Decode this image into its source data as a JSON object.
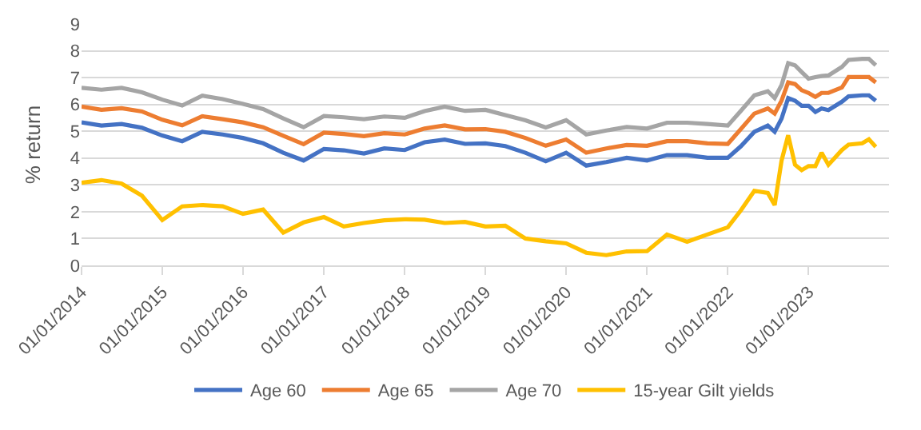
{
  "chart_data": {
    "type": "line",
    "ylabel": "% return",
    "x": [
      "2014-01",
      "2014-04",
      "2014-07",
      "2014-10",
      "2015-01",
      "2015-04",
      "2015-07",
      "2015-10",
      "2016-01",
      "2016-04",
      "2016-07",
      "2016-10",
      "2017-01",
      "2017-04",
      "2017-07",
      "2017-10",
      "2018-01",
      "2018-04",
      "2018-07",
      "2018-10",
      "2019-01",
      "2019-04",
      "2019-07",
      "2019-10",
      "2020-01",
      "2020-04",
      "2020-07",
      "2020-10",
      "2021-01",
      "2021-04",
      "2021-07",
      "2021-10",
      "2022-01",
      "2022-03",
      "2022-05",
      "2022-07",
      "2022-08",
      "2022-09",
      "2022-10",
      "2022-11",
      "2022-12",
      "2023-01",
      "2023-02",
      "2023-03",
      "2023-04",
      "2023-06",
      "2023-07",
      "2023-09",
      "2023-10",
      "2023-11"
    ],
    "series": [
      {
        "name": "Age 60",
        "color": "#4472c4",
        "values": [
          5.33,
          5.21,
          5.27,
          5.13,
          4.84,
          4.63,
          4.98,
          4.88,
          4.75,
          4.55,
          4.2,
          3.91,
          4.34,
          4.29,
          4.17,
          4.36,
          4.3,
          4.59,
          4.69,
          4.53,
          4.55,
          4.45,
          4.2,
          3.88,
          4.2,
          3.72,
          3.85,
          4.01,
          3.91,
          4.11,
          4.11,
          4.01,
          4.01,
          4.44,
          4.98,
          5.21,
          4.98,
          5.47,
          6.24,
          6.14,
          5.95,
          5.95,
          5.72,
          5.85,
          5.79,
          6.1,
          6.3,
          6.34,
          6.34,
          6.14
        ]
      },
      {
        "name": "Age 65",
        "color": "#ed7d31",
        "values": [
          5.92,
          5.8,
          5.86,
          5.74,
          5.43,
          5.22,
          5.56,
          5.45,
          5.33,
          5.15,
          4.83,
          4.52,
          4.95,
          4.9,
          4.82,
          4.93,
          4.88,
          5.1,
          5.22,
          5.07,
          5.08,
          4.98,
          4.75,
          4.46,
          4.69,
          4.2,
          4.36,
          4.49,
          4.46,
          4.63,
          4.63,
          4.55,
          4.53,
          5.08,
          5.66,
          5.85,
          5.66,
          6.14,
          6.82,
          6.76,
          6.53,
          6.43,
          6.28,
          6.43,
          6.43,
          6.63,
          7.02,
          7.02,
          7.02,
          6.82
        ]
      },
      {
        "name": "Age 70",
        "color": "#a5a5a5",
        "values": [
          6.62,
          6.55,
          6.62,
          6.45,
          6.18,
          5.96,
          6.33,
          6.2,
          6.02,
          5.83,
          5.48,
          5.15,
          5.57,
          5.52,
          5.45,
          5.55,
          5.5,
          5.75,
          5.92,
          5.76,
          5.8,
          5.6,
          5.41,
          5.14,
          5.41,
          4.88,
          5.03,
          5.16,
          5.1,
          5.32,
          5.32,
          5.27,
          5.21,
          5.76,
          6.34,
          6.49,
          6.24,
          6.72,
          7.54,
          7.46,
          7.21,
          6.96,
          7.02,
          7.06,
          7.08,
          7.4,
          7.66,
          7.7,
          7.7,
          7.46
        ]
      },
      {
        "name": "15-year Gilt yields",
        "color": "#ffc000",
        "values": [
          3.08,
          3.18,
          3.05,
          2.6,
          1.69,
          2.2,
          2.25,
          2.2,
          1.92,
          2.08,
          1.22,
          1.6,
          1.8,
          1.45,
          1.58,
          1.68,
          1.72,
          1.7,
          1.58,
          1.62,
          1.45,
          1.48,
          1.0,
          0.9,
          0.82,
          0.47,
          0.38,
          0.52,
          0.53,
          1.15,
          0.88,
          1.15,
          1.42,
          2.05,
          2.78,
          2.7,
          2.25,
          3.9,
          4.85,
          3.75,
          3.55,
          3.7,
          3.7,
          4.2,
          3.75,
          4.3,
          4.5,
          4.55,
          4.7,
          4.42
        ]
      }
    ],
    "xlim": [
      "2014-01-01",
      "2023-12-31"
    ],
    "xticks": [
      {
        "value": "2014-01-01",
        "label": "01/01/2014"
      },
      {
        "value": "2015-01-01",
        "label": "01/01/2015"
      },
      {
        "value": "2016-01-01",
        "label": "01/01/2016"
      },
      {
        "value": "2017-01-01",
        "label": "01/01/2017"
      },
      {
        "value": "2018-01-01",
        "label": "01/01/2018"
      },
      {
        "value": "2019-01-01",
        "label": "01/01/2019"
      },
      {
        "value": "2020-01-01",
        "label": "01/01/2020"
      },
      {
        "value": "2021-01-01",
        "label": "01/01/2021"
      },
      {
        "value": "2022-01-01",
        "label": "01/01/2022"
      },
      {
        "value": "2023-01-01",
        "label": "01/01/2023"
      }
    ],
    "ylim": [
      0,
      9
    ],
    "yticks": [
      0,
      1,
      2,
      3,
      4,
      5,
      6,
      7,
      8,
      9
    ],
    "grid": "y",
    "legend": "bottom",
    "marker": "none",
    "line_style": "solid"
  }
}
